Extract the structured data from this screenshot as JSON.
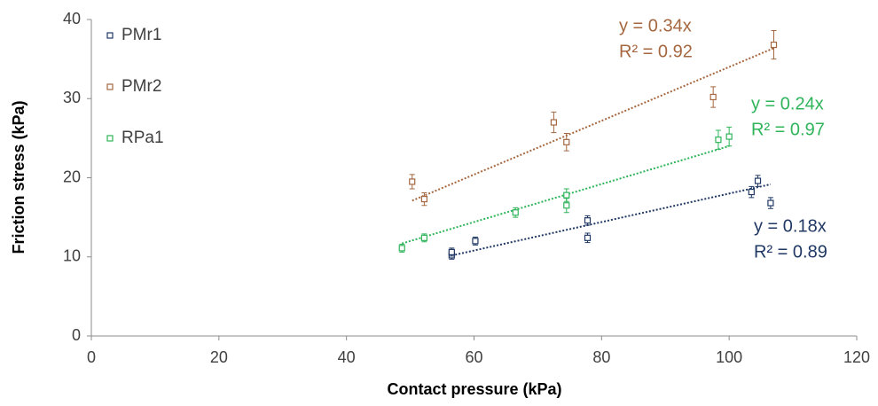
{
  "chart_data": {
    "type": "scatter",
    "x_label": "Contact pressure (kPa)",
    "y_label": "Friction stress (kPa)",
    "xlim": [
      0,
      120
    ],
    "xticks": [
      0,
      20,
      40,
      60,
      80,
      100,
      120
    ],
    "ylim": [
      0,
      40
    ],
    "yticks": [
      0,
      10,
      20,
      30,
      40
    ],
    "grid": false,
    "legend": "top-left",
    "series": [
      {
        "name": "PMr1",
        "color": "#203864",
        "x": [
          56.5,
          56.5,
          60.2,
          77.8,
          77.8,
          103.5,
          104.5,
          106.5
        ],
        "values": [
          10.2,
          10.6,
          12.0,
          14.6,
          12.4,
          18.2,
          19.6,
          16.8
        ],
        "errors": [
          0.5,
          0.5,
          0.5,
          0.6,
          0.6,
          0.7,
          0.7,
          0.7
        ],
        "trend_slope": 0.18,
        "trend_label": "y = 0.18x",
        "r2_label": "R² = 0.89"
      },
      {
        "name": "PMr2",
        "color": "#a5673f",
        "x": [
          50.3,
          52.2,
          72.5,
          74.5,
          97.5,
          107.0
        ],
        "values": [
          19.5,
          17.3,
          27.0,
          24.5,
          30.2,
          36.8
        ],
        "errors": [
          0.9,
          0.8,
          1.3,
          1.1,
          1.3,
          1.8
        ],
        "trend_slope": 0.34,
        "trend_label": "y = 0.34x",
        "r2_label": "R² = 0.92"
      },
      {
        "name": "RPa1",
        "color": "#2fb45a",
        "x": [
          48.7,
          52.2,
          66.5,
          74.5,
          74.5,
          98.3,
          100.0
        ],
        "values": [
          11.1,
          12.4,
          15.6,
          17.8,
          16.5,
          24.8,
          25.2
        ],
        "errors": [
          0.5,
          0.5,
          0.6,
          0.8,
          0.9,
          1.2,
          1.2
        ],
        "trend_slope": 0.24,
        "trend_label": "y = 0.24x",
        "r2_label": "R² = 0.97"
      }
    ]
  }
}
